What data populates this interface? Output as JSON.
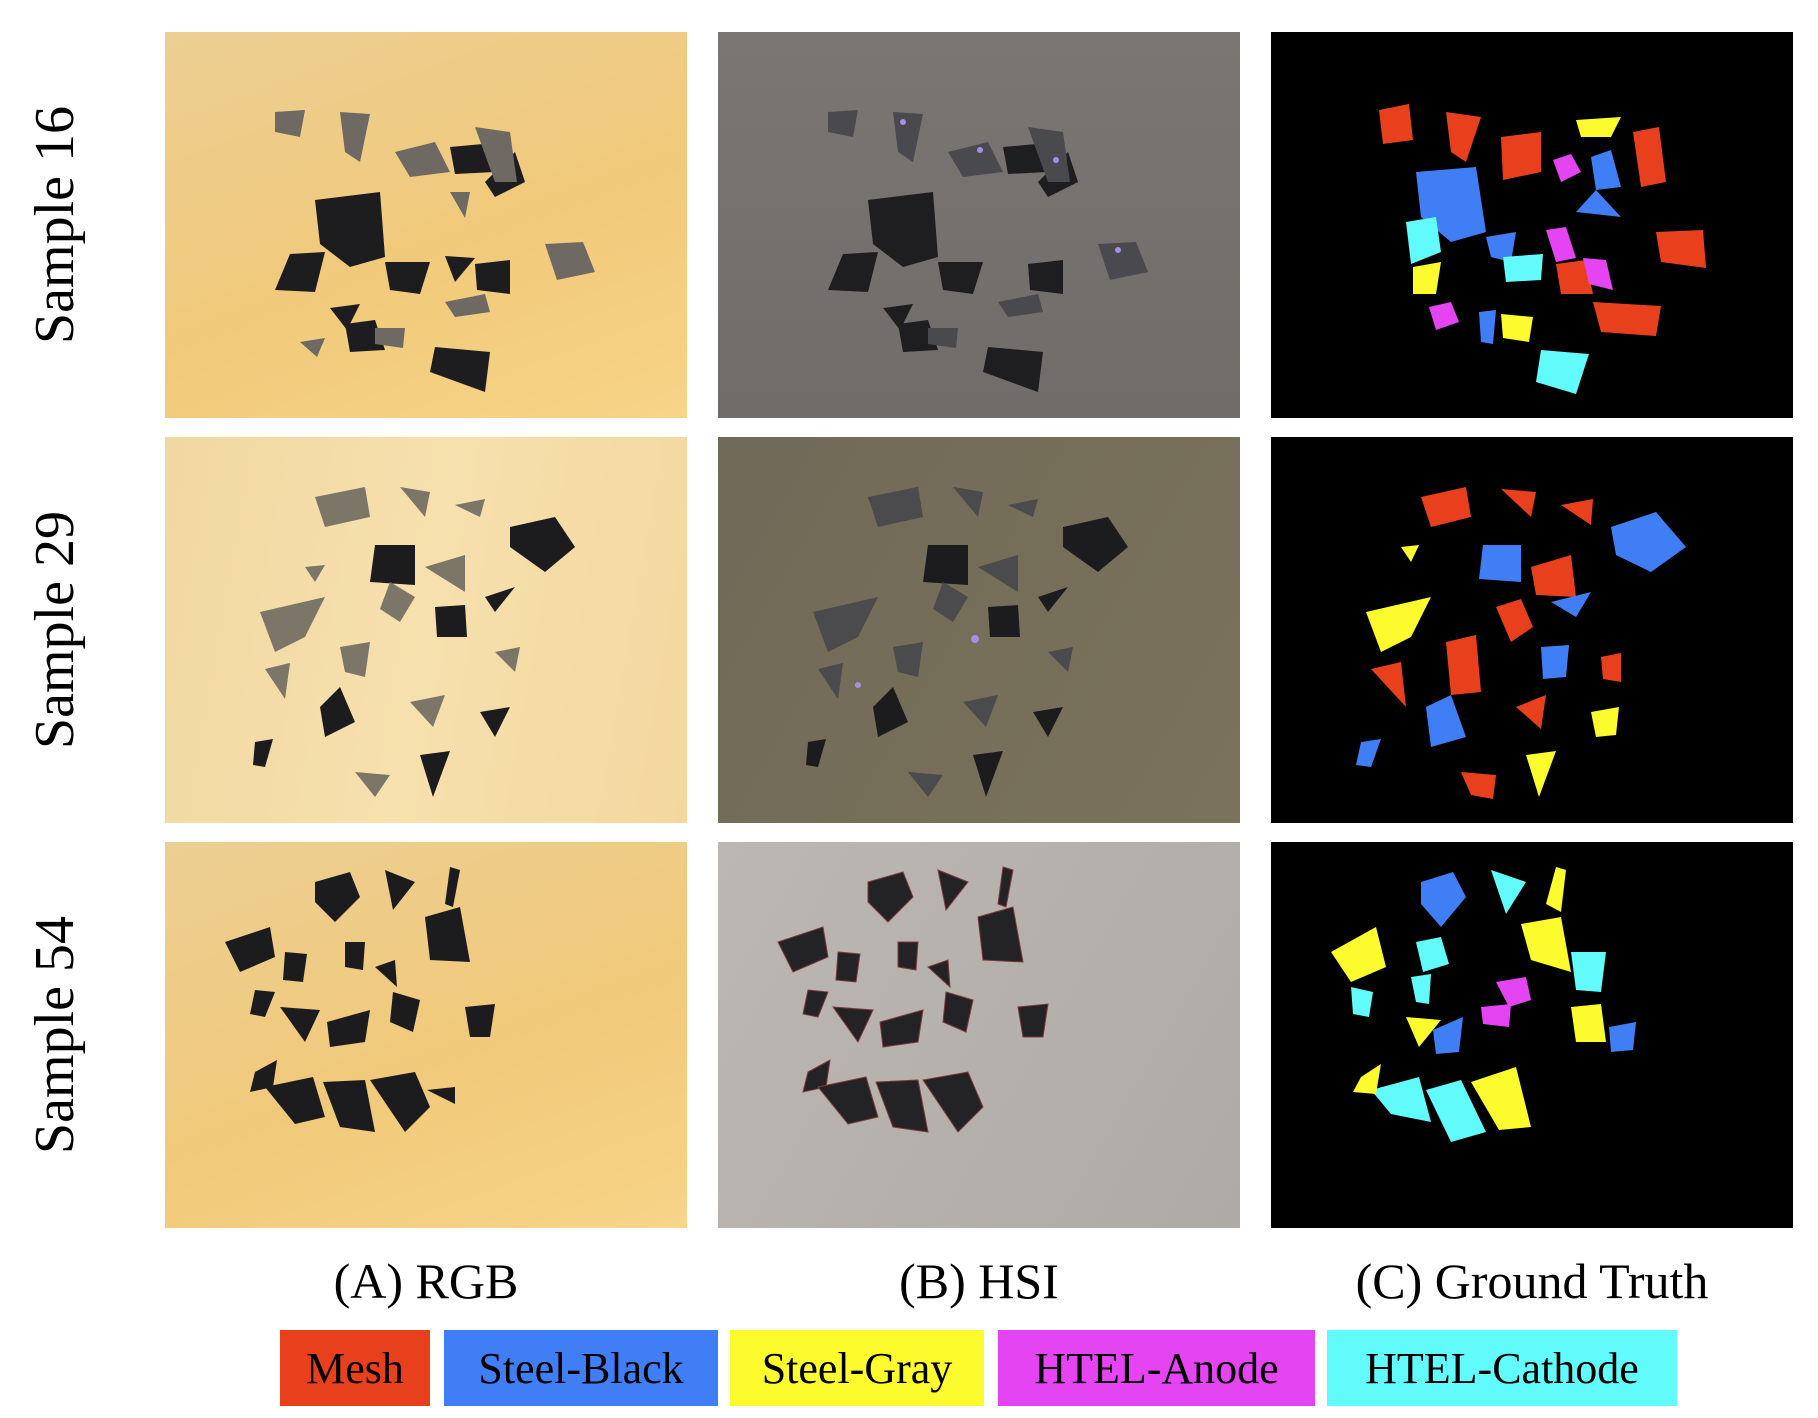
{
  "rows": [
    {
      "label": "Sample 16"
    },
    {
      "label": "Sample 29"
    },
    {
      "label": "Sample 54"
    }
  ],
  "columns": [
    {
      "label": "(A) RGB"
    },
    {
      "label": "(B) HSI"
    },
    {
      "label": "(C) Ground Truth"
    }
  ],
  "legend": [
    {
      "label": "Mesh",
      "color": "#e8401c"
    },
    {
      "label": "Steel-Black",
      "color": "#3f7ef5"
    },
    {
      "label": "Steel-Gray",
      "color": "#fbfb2e"
    },
    {
      "label": "HTEL-Anode",
      "color": "#e444f2"
    },
    {
      "label": "HTEL-Cathode",
      "color": "#62fbfb"
    }
  ]
}
